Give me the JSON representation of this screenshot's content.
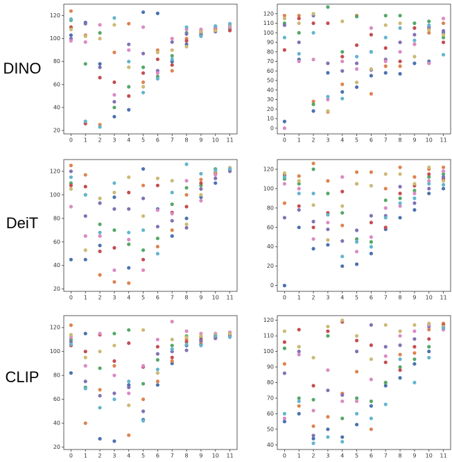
{
  "row_labels": [
    "DINO",
    "DeiT",
    "CLIP"
  ],
  "chart_data": [
    {
      "type": "scatter",
      "x": [
        0,
        1,
        2,
        3,
        4,
        5,
        6,
        7,
        8,
        9,
        10,
        11
      ],
      "xlim": [
        -0.5,
        11.5
      ],
      "xticks": [
        0,
        1,
        2,
        3,
        4,
        5,
        6,
        7,
        8,
        9,
        10,
        11
      ],
      "ylim": [
        17,
        130
      ],
      "yticks": [
        20,
        40,
        60,
        80,
        100,
        120
      ],
      "series": [
        {
          "color": "#4c72b0",
          "values": [
            103,
            114,
            78,
            32,
            38,
            123,
            122,
            80,
            95,
            103,
            110,
            108
          ]
        },
        {
          "color": "#dd8452",
          "values": [
            124,
            103,
            25,
            88,
            113,
            62,
            90,
            72,
            100,
            107,
            109,
            112
          ]
        },
        {
          "color": "#55a868",
          "values": [
            116,
            78,
            105,
            40,
            58,
            75,
            67,
            85,
            105,
            105,
            107,
            109
          ]
        },
        {
          "color": "#c44e52",
          "values": [
            110,
            26,
            66,
            62,
            50,
            70,
            82,
            77,
            98,
            106,
            108,
            107
          ]
        },
        {
          "color": "#8172b3",
          "values": [
            100,
            113,
            75,
            45,
            95,
            87,
            72,
            97,
            104,
            104,
            106,
            111
          ]
        },
        {
          "color": "#da8bc3",
          "values": [
            98,
            97,
            112,
            51,
            90,
            110,
            70,
            100,
            108,
            108,
            110,
            110
          ]
        },
        {
          "color": "#ccb974",
          "values": [
            108,
            102,
            100,
            112,
            75,
            58,
            88,
            90,
            93,
            106,
            107,
            112
          ]
        },
        {
          "color": "#64b5cd",
          "values": [
            117,
            28,
            23,
            118,
            80,
            53,
            65,
            82,
            110,
            102,
            111,
            113
          ]
        }
      ]
    },
    {
      "type": "scatter",
      "x": [
        0,
        1,
        2,
        3,
        4,
        5,
        6,
        7,
        8,
        9,
        10,
        11
      ],
      "xlim": [
        -0.5,
        11.5
      ],
      "xticks": [
        0,
        1,
        2,
        3,
        4,
        5,
        6,
        7,
        8,
        9,
        10,
        11
      ],
      "ylim": [
        -6,
        130
      ],
      "yticks": [
        0,
        10,
        20,
        30,
        40,
        50,
        60,
        70,
        80,
        90,
        100,
        110,
        120
      ],
      "series": [
        {
          "color": "#4c72b0",
          "values": [
            7,
            72,
            18,
            58,
            38,
            43,
            55,
            58,
            57,
            68,
            70,
            100
          ]
        },
        {
          "color": "#dd8452",
          "values": [
            118,
            118,
            28,
            17,
            46,
            118,
            36,
            65,
            65,
            88,
            100,
            110
          ]
        },
        {
          "color": "#55a868",
          "values": [
            110,
            100,
            25,
            127,
            80,
            117,
            80,
            118,
            118,
            110,
            112,
            95
          ]
        },
        {
          "color": "#c44e52",
          "values": [
            82,
            115,
            110,
            110,
            75,
            87,
            98,
            84,
            70,
            105,
            105,
            90
          ]
        },
        {
          "color": "#8172b3",
          "values": [
            108,
            90,
            118,
            68,
            60,
            68,
            61,
            72,
            90,
            98,
            106,
            102
          ]
        },
        {
          "color": "#da8bc3",
          "values": [
            0,
            70,
            72,
            30,
            70,
            62,
            105,
            70,
            80,
            88,
            68,
            115
          ]
        },
        {
          "color": "#ccb974",
          "values": [
            115,
            110,
            120,
            18,
            112,
            48,
            62,
            108,
            110,
            75,
            103,
            98
          ]
        },
        {
          "color": "#64b5cd",
          "values": [
            95,
            78,
            100,
            33,
            31,
            75,
            80,
            95,
            105,
            92,
            108,
            77
          ]
        }
      ]
    },
    {
      "type": "scatter",
      "x": [
        0,
        1,
        2,
        3,
        4,
        5,
        6,
        7,
        8,
        9,
        10,
        11
      ],
      "xlim": [
        -0.5,
        11.5
      ],
      "xticks": [
        0,
        1,
        2,
        3,
        4,
        5,
        6,
        7,
        8,
        9,
        10,
        11
      ],
      "ylim": [
        18,
        130
      ],
      "yticks": [
        20,
        40,
        60,
        80,
        100,
        120
      ],
      "series": [
        {
          "color": "#4c72b0",
          "values": [
            45,
            45,
            57,
            98,
            38,
            122,
            88,
            65,
            80,
            98,
            110,
            121
          ]
        },
        {
          "color": "#dd8452",
          "values": [
            125,
            117,
            32,
            26,
            25,
            108,
            56,
            70,
            100,
            113,
            118,
            122
          ]
        },
        {
          "color": "#55a868",
          "values": [
            110,
            100,
            75,
            70,
            58,
            53,
            63,
            92,
            106,
            108,
            122,
            121
          ]
        },
        {
          "color": "#c44e52",
          "values": [
            108,
            107,
            52,
            55,
            102,
            45,
            108,
            85,
            90,
            110,
            119,
            123
          ]
        },
        {
          "color": "#8172b3",
          "values": [
            120,
            82,
            93,
            88,
            88,
            97,
            73,
            78,
            72,
            105,
            114,
            120
          ]
        },
        {
          "color": "#da8bc3",
          "values": [
            90,
            65,
            65,
            36,
            62,
            36,
            87,
            84,
            112,
            95,
            117,
            122
          ]
        },
        {
          "color": "#ccb974",
          "values": [
            105,
            53,
            97,
            102,
            115,
            82,
            114,
            112,
            75,
            100,
            120,
            123
          ]
        },
        {
          "color": "#64b5cd",
          "values": [
            115,
            100,
            68,
            110,
            68,
            70,
            50,
            102,
            126,
            118,
            121,
            122
          ]
        }
      ]
    },
    {
      "type": "scatter",
      "x": [
        0,
        1,
        2,
        3,
        4,
        5,
        6,
        7,
        8,
        9,
        10,
        11
      ],
      "xlim": [
        -0.5,
        11.5
      ],
      "xticks": [
        0,
        1,
        2,
        3,
        4,
        5,
        6,
        7,
        8,
        9,
        10,
        11
      ],
      "ylim": [
        -6,
        130
      ],
      "yticks": [
        0,
        20,
        40,
        60,
        80,
        100,
        120
      ],
      "series": [
        {
          "color": "#4c72b0",
          "values": [
            0,
            60,
            38,
            42,
            20,
            22,
            33,
            58,
            70,
            78,
            95,
            100
          ]
        },
        {
          "color": "#dd8452",
          "values": [
            85,
            113,
            126,
            108,
            62,
            117,
            117,
            100,
            122,
            112,
            120,
            122
          ]
        },
        {
          "color": "#55a868",
          "values": [
            110,
            105,
            120,
            95,
            75,
            48,
            45,
            88,
            90,
            98,
            112,
            115
          ]
        },
        {
          "color": "#c44e52",
          "values": [
            114,
            82,
            60,
            75,
            97,
            105,
            65,
            60,
            95,
            103,
            115,
            110
          ]
        },
        {
          "color": "#8172b3",
          "values": [
            70,
            78,
            66,
            58,
            46,
            57,
            72,
            72,
            102,
            85,
            100,
            112
          ]
        },
        {
          "color": "#da8bc3",
          "values": [
            105,
            100,
            48,
            65,
            112,
            35,
            50,
            80,
            82,
            95,
            108,
            118
          ]
        },
        {
          "color": "#ccb974",
          "values": [
            116,
            108,
            83,
            47,
            82,
            105,
            103,
            115,
            115,
            105,
            122,
            108
          ]
        },
        {
          "color": "#64b5cd",
          "values": [
            112,
            95,
            95,
            73,
            30,
            45,
            40,
            70,
            85,
            90,
            105,
            104
          ]
        }
      ]
    },
    {
      "type": "scatter",
      "x": [
        0,
        1,
        2,
        3,
        4,
        5,
        6,
        7,
        8,
        9,
        10,
        11
      ],
      "xlim": [
        -0.5,
        11.5
      ],
      "xticks": [
        0,
        1,
        2,
        3,
        4,
        5,
        6,
        7,
        8,
        9,
        10,
        11
      ],
      "ylim": [
        18,
        130
      ],
      "yticks": [
        20,
        40,
        60,
        80,
        100,
        120
      ],
      "series": [
        {
          "color": "#4c72b0",
          "values": [
            82,
            115,
            27,
            25,
            72,
            43,
            72,
            90,
            105,
            106,
            112,
            113
          ]
        },
        {
          "color": "#dd8452",
          "values": [
            122,
            40,
            68,
            88,
            30,
            60,
            75,
            92,
            110,
            108,
            113,
            115
          ]
        },
        {
          "color": "#55a868",
          "values": [
            110,
            70,
            86,
            115,
            118,
            73,
            93,
            105,
            113,
            112,
            114,
            116
          ]
        },
        {
          "color": "#c44e52",
          "values": [
            105,
            100,
            114,
            92,
            107,
            87,
            104,
            95,
            108,
            110,
            112,
            114
          ]
        },
        {
          "color": "#8172b3",
          "values": [
            108,
            75,
            63,
            65,
            70,
            50,
            98,
            100,
            101,
            109,
            111,
            113
          ]
        },
        {
          "color": "#da8bc3",
          "values": [
            112,
            88,
            115,
            80,
            65,
            88,
            110,
            125,
            117,
            115,
            115,
            116
          ]
        },
        {
          "color": "#ccb974",
          "values": [
            114,
            95,
            100,
            105,
            55,
            118,
            82,
            110,
            112,
            113,
            114,
            115
          ]
        },
        {
          "color": "#64b5cd",
          "values": [
            106,
            69,
            53,
            60,
            75,
            42,
            85,
            102,
            106,
            105,
            113,
            112
          ]
        }
      ]
    },
    {
      "type": "scatter",
      "x": [
        0,
        1,
        2,
        3,
        4,
        5,
        6,
        7,
        8,
        9,
        10,
        11
      ],
      "xlim": [
        -0.5,
        11.5
      ],
      "xticks": [
        0,
        1,
        2,
        3,
        4,
        5,
        6,
        7,
        8,
        9,
        10,
        11
      ],
      "ylim": [
        37,
        123
      ],
      "yticks": [
        40,
        50,
        60,
        70,
        80,
        90,
        100,
        110,
        120
      ],
      "series": [
        {
          "color": "#4c72b0",
          "values": [
            55,
            60,
            44,
            50,
            45,
            53,
            65,
            78,
            83,
            92,
            100,
            114
          ]
        },
        {
          "color": "#dd8452",
          "values": [
            92,
            65,
            52,
            58,
            73,
            87,
            50,
            80,
            98,
            99,
            114,
            118
          ]
        },
        {
          "color": "#55a868",
          "values": [
            102,
            70,
            69,
            110,
            57,
            70,
            68,
            80,
            90,
            95,
            103,
            116
          ]
        },
        {
          "color": "#c44e52",
          "values": [
            106,
            114,
            78,
            113,
            119,
            107,
            104,
            93,
            88,
            103,
            108,
            117
          ]
        },
        {
          "color": "#8172b3",
          "values": [
            86,
            100,
            46,
            75,
            72,
            100,
            117,
            103,
            104,
            108,
            116,
            115
          ]
        },
        {
          "color": "#da8bc3",
          "values": [
            57,
            98,
            62,
            88,
            68,
            68,
            82,
            97,
            110,
            113,
            117,
            114
          ]
        },
        {
          "color": "#ccb974",
          "values": [
            113,
            103,
            96,
            116,
            120,
            110,
            95,
            117,
            113,
            117,
            118,
            116
          ]
        },
        {
          "color": "#64b5cd",
          "values": [
            60,
            68,
            41,
            45,
            42,
            60,
            57,
            66,
            95,
            80,
            96,
            115
          ]
        }
      ]
    }
  ]
}
